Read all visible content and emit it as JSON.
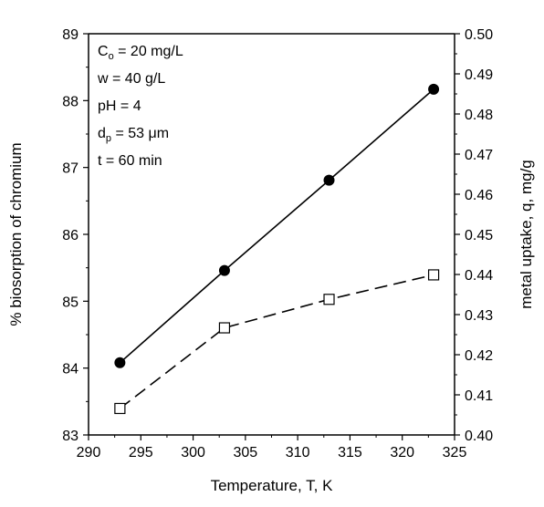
{
  "chart_data": {
    "type": "line",
    "x": [
      293,
      303,
      313,
      323
    ],
    "xlabel": "Temperature, T, K",
    "xlim": [
      290,
      325
    ],
    "xticks": [
      290,
      295,
      300,
      305,
      310,
      315,
      320,
      325
    ],
    "ylabel_left": "% biosorption of chromium",
    "ylim_left": [
      83,
      89
    ],
    "yticks_left": [
      83,
      84,
      85,
      86,
      87,
      88,
      89
    ],
    "ylabel_right": "metal uptake, q, mg/g",
    "ylim_right": [
      0.4,
      0.5
    ],
    "yticks_right": [
      "0.40",
      "0.41",
      "0.42",
      "0.43",
      "0.44",
      "0.45",
      "0.46",
      "0.47",
      "0.48",
      "0.49",
      "0.50"
    ],
    "series": [
      {
        "axis": "left",
        "marker": "filled-circle",
        "line": "solid",
        "values": [
          84.08,
          85.46,
          86.81,
          88.17
        ]
      },
      {
        "axis": "right",
        "marker": "open-square",
        "line": "dashed",
        "values": [
          0.4066,
          0.4267,
          0.4338,
          0.4399
        ]
      }
    ],
    "annotations": [
      {
        "main": "C",
        "sub": "o",
        "rest": " = 20 mg/L"
      },
      {
        "main": "w = 40 g/L",
        "sub": "",
        "rest": ""
      },
      {
        "main": "pH = 4",
        "sub": "",
        "rest": ""
      },
      {
        "main": "d",
        "sub": "p",
        "rest": " = 53 μm"
      },
      {
        "main": "t = 60 min",
        "sub": "",
        "rest": ""
      }
    ],
    "grid": false,
    "legend": "none"
  }
}
